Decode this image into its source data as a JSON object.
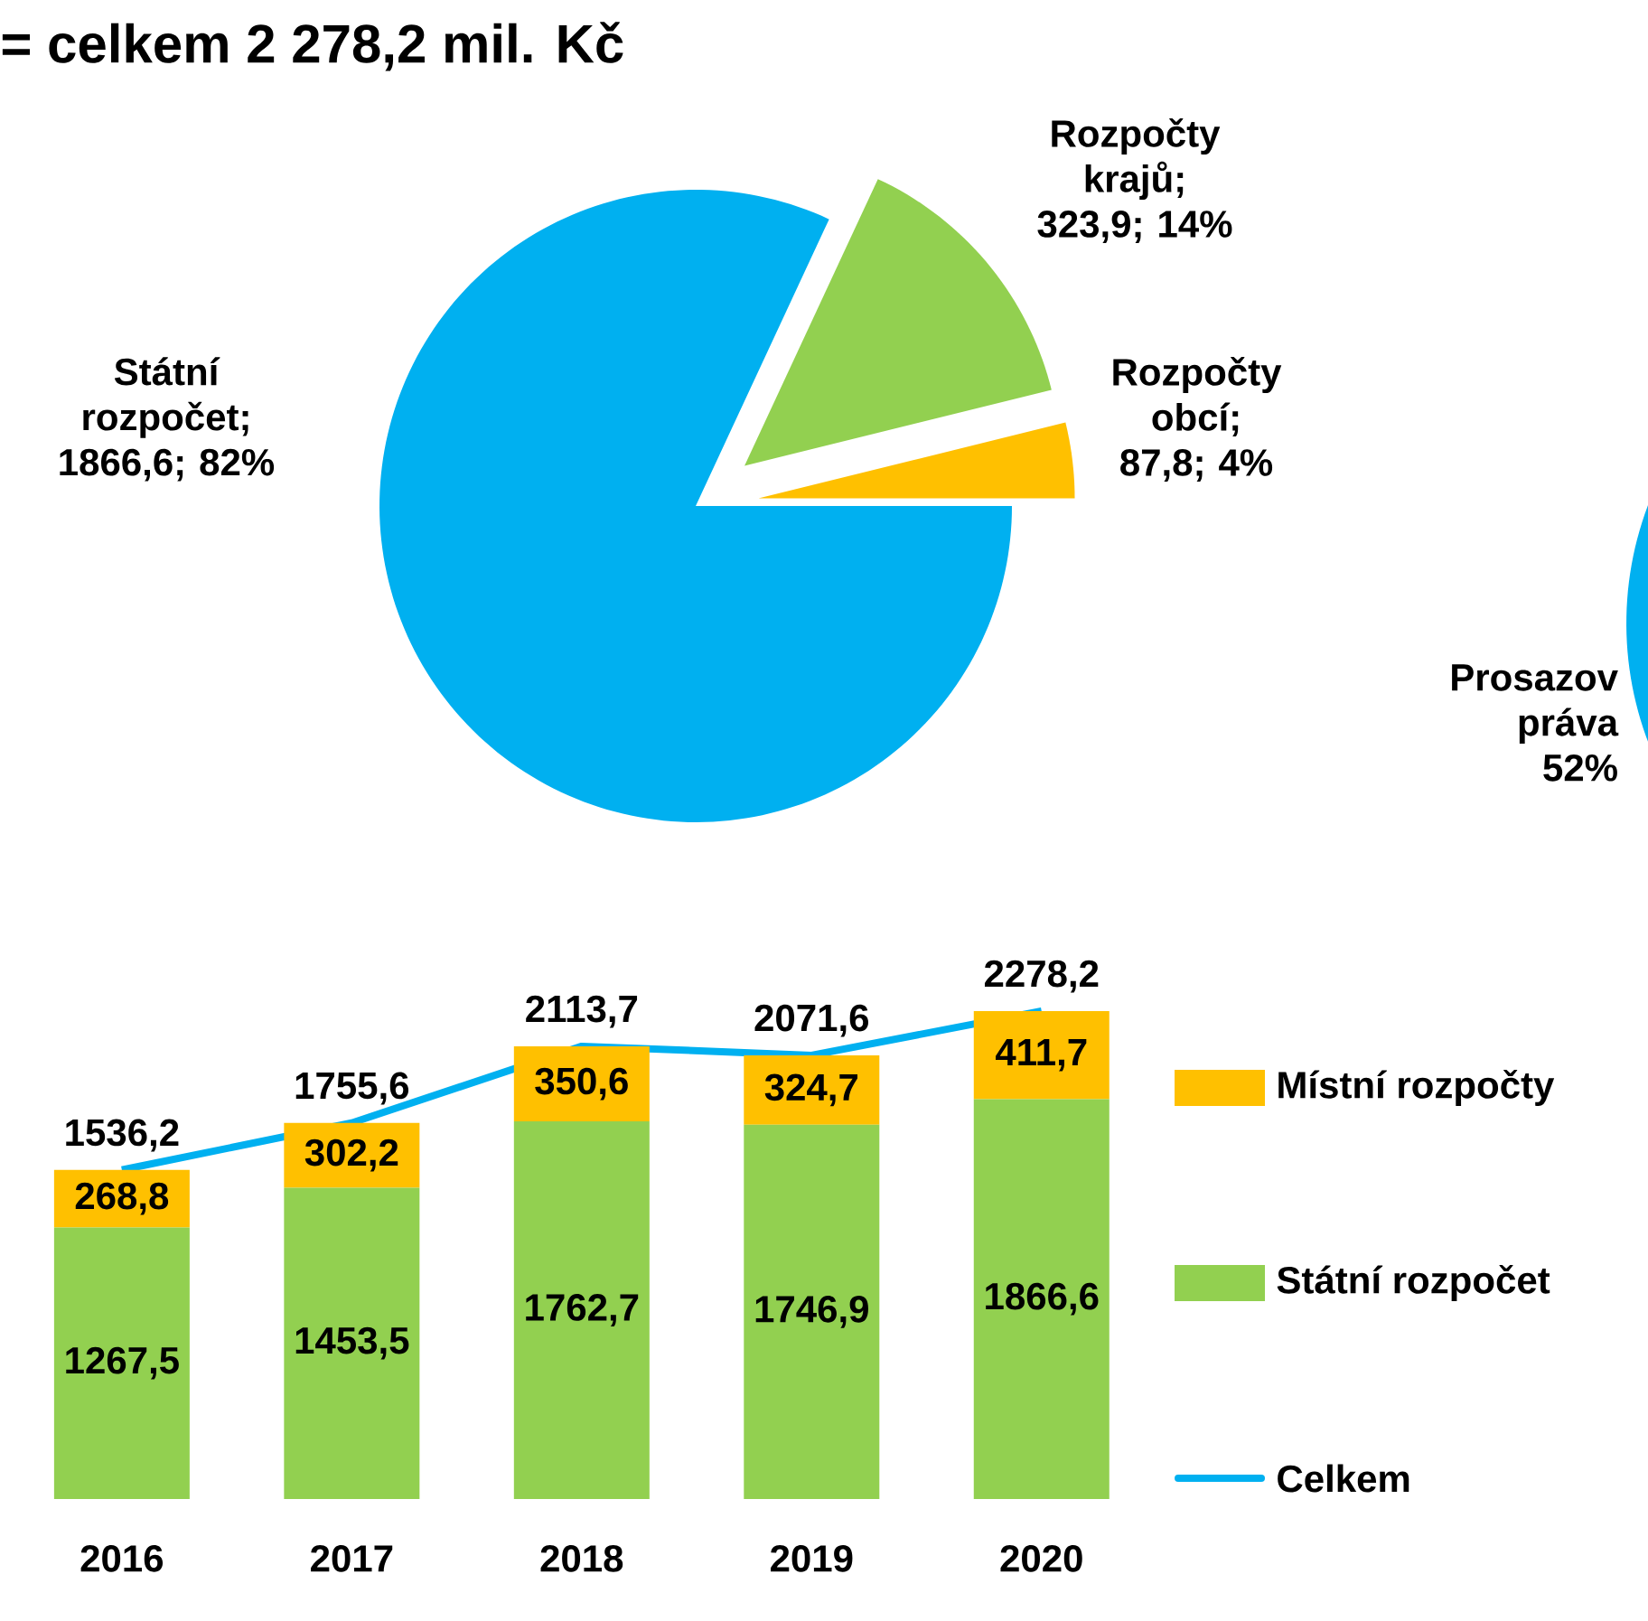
{
  "chart_data": [
    {
      "type": "pie",
      "title": "= celkem 2 278,2 mil. Kč",
      "categories": [
        "Státní rozpočet",
        "Rozpočty krajů",
        "Rozpočty obcí"
      ],
      "values": [
        1866.6,
        323.9,
        87.8
      ],
      "value_labels": [
        "; 1866,6; 82%",
        "; 323,9; 14%",
        "; 87,8; 4%"
      ],
      "colors": [
        "#00b0f0",
        "#92d050",
        "#ffc000"
      ]
    },
    {
      "type": "pie",
      "categories": [
        "Prosazov práva"
      ],
      "values": [
        52
      ],
      "value_labels": [
        "52%"
      ],
      "colors": [
        "#00b0f0"
      ]
    },
    {
      "type": "bar",
      "stacked": true,
      "legend": "right",
      "categories": [
        "2016",
        "2017",
        "2018",
        "2019",
        "2020"
      ],
      "series": [
        {
          "name": "Státní rozpočet",
          "color": "#92d050",
          "values": [
            1267.5,
            1453.5,
            1762.7,
            1746.9,
            1866.6
          ],
          "value_labels": [
            "1267,5",
            "1453,5",
            "1762,7",
            "1746,9",
            "1866,6"
          ]
        },
        {
          "name": "Místní rozpočty",
          "color": "#ffc000",
          "values": [
            268.8,
            302.2,
            350.6,
            324.7,
            411.7
          ],
          "value_labels": [
            "268,8",
            "302,2",
            "350,6",
            "324,7",
            "411,7"
          ]
        },
        {
          "type": "line",
          "name": "Celkem",
          "color": "#00b0f0",
          "values": [
            1536.2,
            1755.6,
            2113.7,
            2071.6,
            2278.2
          ],
          "value_labels": [
            "1536,2",
            "1755,6",
            "2113,7",
            "2071,6",
            "2278,2"
          ]
        }
      ]
    }
  ]
}
